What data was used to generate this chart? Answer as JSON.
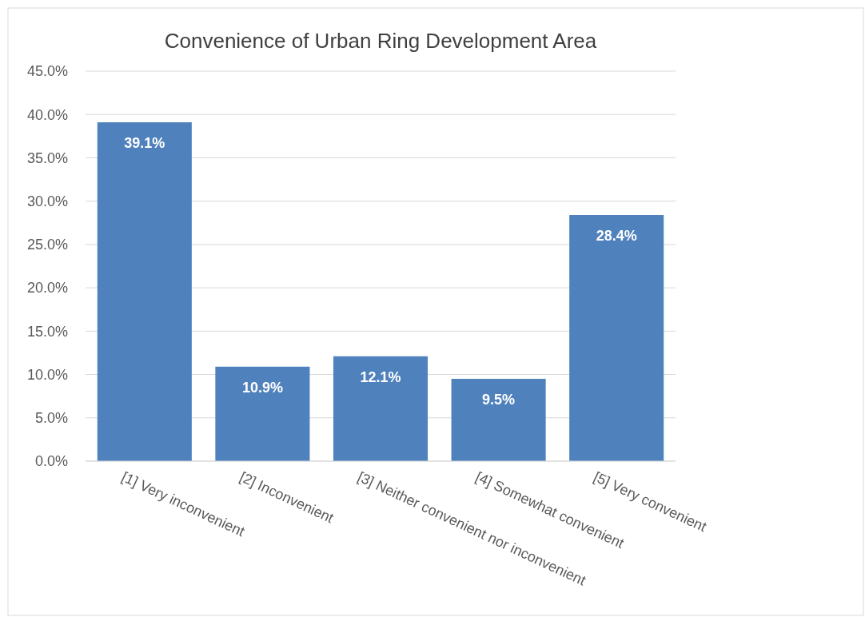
{
  "chart_data": {
    "type": "bar",
    "title": "Convenience of Urban Ring Development Area",
    "categories": [
      "[1] Very inconvenient",
      "[2] Inconvenient",
      "[3] Neither convenient nor inconvenient",
      "[4] Somewhat convenient",
      "[5] Very convenient"
    ],
    "values": [
      39.1,
      10.9,
      12.1,
      9.5,
      28.4
    ],
    "value_labels": [
      "39.1%",
      "10.9%",
      "12.1%",
      "9.5%",
      "28.4%"
    ],
    "color": "#4f81bd",
    "ylim": [
      0,
      45
    ],
    "yticks": [
      {
        "value": 0,
        "label": "0.0%"
      },
      {
        "value": 5,
        "label": "5.0%"
      },
      {
        "value": 10,
        "label": "10.0%"
      },
      {
        "value": 15,
        "label": "15.0%"
      },
      {
        "value": 20,
        "label": "20.0%"
      },
      {
        "value": 25,
        "label": "25.0%"
      },
      {
        "value": 30,
        "label": "30.0%"
      },
      {
        "value": 35,
        "label": "35.0%"
      },
      {
        "value": 40,
        "label": "40.0%"
      },
      {
        "value": 45,
        "label": "45.0%"
      }
    ],
    "grid": "y"
  }
}
